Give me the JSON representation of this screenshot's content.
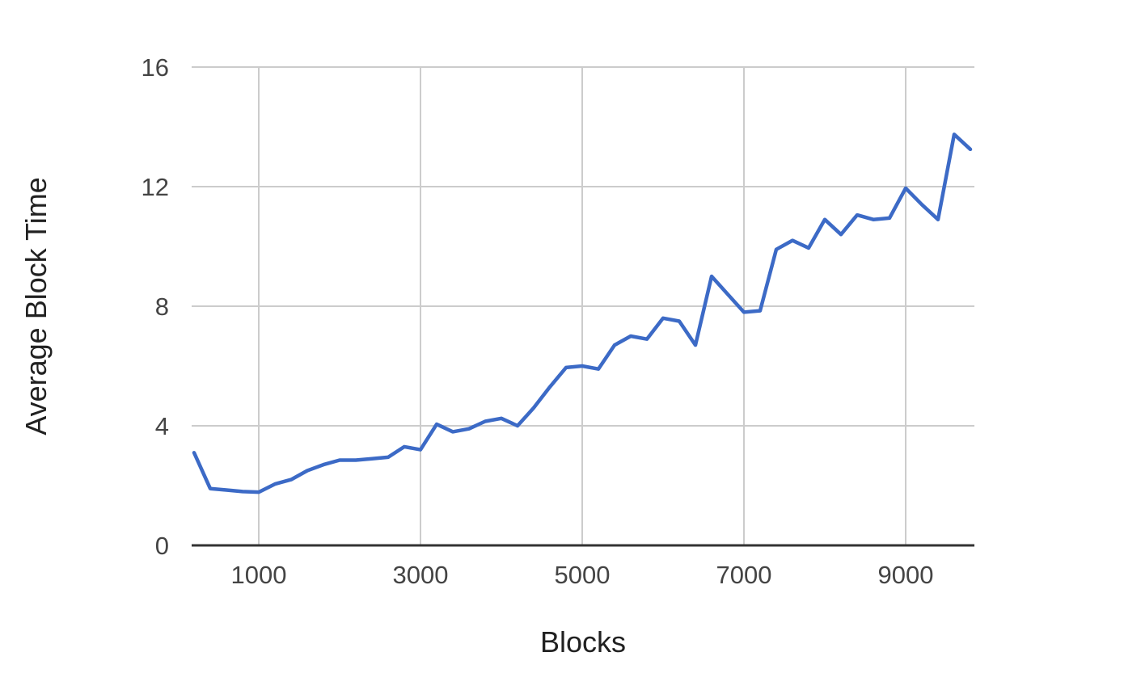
{
  "figure": {
    "background_color": "#FFFFFF"
  },
  "chart_data": {
    "type": "line",
    "title": "",
    "xlabel": "Blocks",
    "ylabel": "Average Block Time",
    "grid": true,
    "legend": false,
    "xlim": [
      170,
      9850
    ],
    "ylim": [
      0,
      16
    ],
    "x_ticks": [
      1000,
      3000,
      5000,
      7000,
      9000
    ],
    "y_ticks": [
      0,
      4,
      8,
      12,
      16
    ],
    "x": [
      200,
      400,
      600,
      800,
      1000,
      1200,
      1400,
      1600,
      1800,
      2000,
      2200,
      2400,
      2600,
      2800,
      3000,
      3200,
      3400,
      3600,
      3800,
      4000,
      4200,
      4400,
      4600,
      4800,
      5000,
      5200,
      5400,
      5600,
      5800,
      6000,
      6200,
      6400,
      6600,
      6800,
      7000,
      7200,
      7400,
      7600,
      7800,
      8000,
      8200,
      8400,
      8600,
      8800,
      9000,
      9200,
      9400,
      9600,
      9800
    ],
    "series": [
      {
        "name": "Average Block Time",
        "values": [
          3.1,
          1.9,
          1.85,
          1.8,
          1.78,
          2.05,
          2.2,
          2.5,
          2.7,
          2.85,
          2.85,
          2.9,
          2.95,
          3.3,
          3.2,
          4.05,
          3.8,
          3.9,
          4.15,
          4.25,
          4.0,
          4.6,
          5.3,
          5.95,
          6.0,
          5.9,
          6.7,
          7.0,
          6.9,
          7.6,
          7.5,
          6.7,
          9.0,
          8.4,
          7.8,
          7.85,
          9.9,
          10.2,
          9.95,
          10.9,
          10.4,
          11.05,
          10.9,
          10.95,
          11.95,
          11.4,
          10.9,
          13.75,
          13.25
        ]
      }
    ],
    "colors": {
      "line": "#3C6AC6",
      "gridline": "#CCCCCC",
      "axis_line": "#333333",
      "tick_label": "#444444",
      "axis_title": "#212121"
    }
  }
}
